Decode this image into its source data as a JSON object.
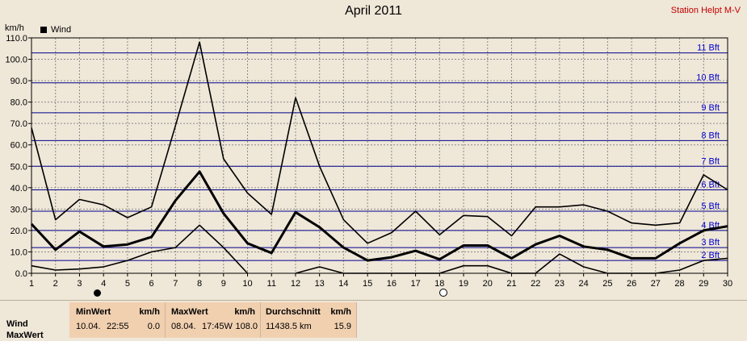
{
  "title": "April 2011",
  "station": "Station Helpt M-V",
  "unit": "km/h",
  "legend": {
    "label": "Wind"
  },
  "chart_data": {
    "type": "line",
    "title": "April 2011",
    "ylabel": "km/h",
    "xlabel": "",
    "ylim": [
      0,
      110
    ],
    "xlim": [
      1,
      30
    ],
    "x": [
      1,
      2,
      3,
      4,
      5,
      6,
      7,
      8,
      9,
      10,
      11,
      12,
      13,
      14,
      15,
      16,
      17,
      18,
      19,
      20,
      21,
      22,
      23,
      24,
      25,
      26,
      27,
      28,
      29,
      30
    ],
    "xticks": [
      1,
      2,
      3,
      4,
      5,
      6,
      7,
      8,
      9,
      10,
      11,
      12,
      13,
      14,
      15,
      16,
      17,
      18,
      19,
      20,
      21,
      22,
      23,
      24,
      25,
      26,
      27,
      28,
      29,
      30
    ],
    "yticks": [
      0,
      10,
      20,
      30,
      40,
      50,
      60,
      70,
      80,
      90,
      100,
      110
    ],
    "ytick_labels": [
      "0.0",
      "10.0",
      "20.0",
      "30.0",
      "40.0",
      "50.0",
      "60.0",
      "70.0",
      "80.0",
      "90.0",
      "100.0",
      "110.0"
    ],
    "grid": true,
    "legend_position": "top-left",
    "series": [
      {
        "name": "Wind",
        "role": "max",
        "color": "#000000",
        "values": [
          68,
          25,
          34.5,
          32,
          26,
          31,
          69,
          108,
          53.5,
          37.5,
          27.5,
          82,
          50,
          25,
          14,
          19,
          29,
          18,
          27,
          26.5,
          17.5,
          31,
          31,
          32,
          29,
          23.5,
          22.5,
          23.5,
          46,
          39
        ]
      },
      {
        "name": "",
        "role": "avg",
        "color": "#000000",
        "values": [
          23,
          11,
          19.5,
          12.5,
          13.5,
          17,
          34,
          47.5,
          28,
          14,
          9.5,
          28.5,
          21.5,
          12,
          6,
          7.5,
          10.5,
          6.5,
          13,
          13,
          7,
          13.5,
          17.5,
          12.5,
          11,
          7,
          7,
          14,
          20,
          22
        ]
      },
      {
        "name": "",
        "role": "min",
        "color": "#000000",
        "values": [
          3.5,
          1.5,
          2,
          3,
          6,
          10,
          12,
          22.5,
          12,
          0,
          null,
          0,
          3,
          0,
          0,
          0,
          0,
          0,
          3.5,
          3.5,
          0,
          0,
          9,
          3,
          0,
          0,
          0,
          1.5,
          6,
          7
        ]
      }
    ],
    "beaufort_lines": [
      {
        "label": "2 Bft",
        "value": 6
      },
      {
        "label": "3 Bft",
        "value": 12
      },
      {
        "label": "4 Bft",
        "value": 20
      },
      {
        "label": "5 Bft",
        "value": 29
      },
      {
        "label": "6 Bft",
        "value": 39
      },
      {
        "label": "7 Bft",
        "value": 50
      },
      {
        "label": "8 Bft",
        "value": 62
      },
      {
        "label": "9 Bft",
        "value": 75
      },
      {
        "label": "10 Bft",
        "value": 89
      },
      {
        "label": "11 Bft",
        "value": 103
      }
    ],
    "moon_phases": [
      {
        "phase": "new-moon",
        "day": 3.7
      },
      {
        "phase": "full-moon",
        "day": 18.1
      }
    ]
  },
  "stats": {
    "row_labels": [
      "Wind",
      "MaxWert"
    ],
    "min": {
      "header": "MinWert",
      "unit": "km/h",
      "date": "10.04.",
      "time": "22:55",
      "value": "0.0"
    },
    "max": {
      "header": "MaxWert",
      "unit": "km/h",
      "date": "08.04.",
      "time": "17:45W",
      "value": "108.0"
    },
    "avg": {
      "header": "Durchschnitt",
      "unit": "km/h",
      "distance": "11438.5 km",
      "value": "15.9"
    }
  },
  "colors": {
    "plot_bg": "#efe7d8",
    "grid": "#8a8a8a",
    "beaufort": "#00008b",
    "beaufort_label": "#0000cc",
    "station": "#c00000",
    "stats_bg": "#f1d0b0"
  }
}
